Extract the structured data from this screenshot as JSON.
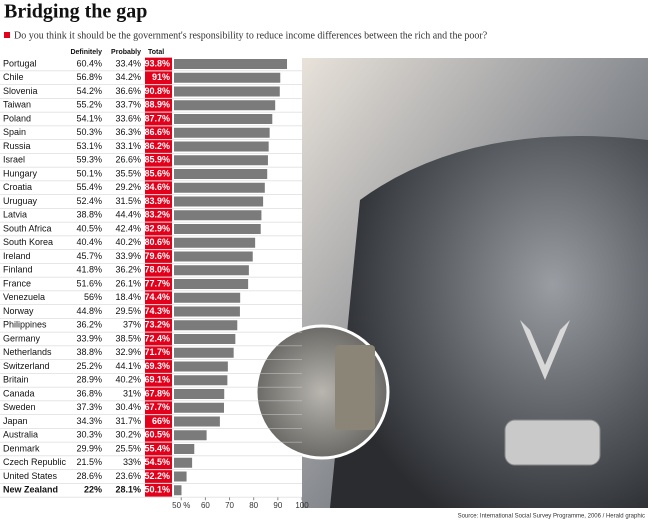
{
  "chart_data": {
    "type": "bar",
    "orientation": "horizontal",
    "title": "Bridging the gap",
    "subtitle": "Do you think it should be the government's responsibility to reduce income differences between the rich and the poor?",
    "source": "Source: International Social Survey Programme, 2006 / Herald graphic",
    "categories": [
      "Portugal",
      "Chile",
      "Slovenia",
      "Taiwan",
      "Poland",
      "Spain",
      "Russia",
      "Israel",
      "Hungary",
      "Croatia",
      "Uruguay",
      "Latvia",
      "South Africa",
      "South Korea",
      "Ireland",
      "Finland",
      "France",
      "Venezuela",
      "Norway",
      "Philippines",
      "Germany",
      "Netherlands",
      "Switzerland",
      "Britain",
      "Canada",
      "Sweden",
      "Japan",
      "Australia",
      "Denmark",
      "Czech Republic",
      "United States",
      "New Zealand"
    ],
    "highlight_index": 31,
    "series": [
      {
        "name": "Definitely",
        "values": [
          60.4,
          56.8,
          54.2,
          55.2,
          54.1,
          50.3,
          53.1,
          59.3,
          50.1,
          55.4,
          52.4,
          38.8,
          40.5,
          40.4,
          45.7,
          41.8,
          51.6,
          56,
          44.8,
          36.2,
          33.9,
          38.8,
          25.2,
          28.9,
          36.8,
          37.3,
          34.3,
          30.3,
          29.9,
          21.5,
          28.6,
          22
        ],
        "value_labels": [
          "60.4%",
          "56.8%",
          "54.2%",
          "55.2%",
          "54.1%",
          "50.3%",
          "53.1%",
          "59.3%",
          "50.1%",
          "55.4%",
          "52.4%",
          "38.8%",
          "40.5%",
          "40.4%",
          "45.7%",
          "41.8%",
          "51.6%",
          "56%",
          "44.8%",
          "36.2%",
          "33.9%",
          "38.8%",
          "25.2%",
          "28.9%",
          "36.8%",
          "37.3%",
          "34.3%",
          "30.3%",
          "29.9%",
          "21.5%",
          "28.6%",
          "22%"
        ]
      },
      {
        "name": "Probably",
        "values": [
          33.4,
          34.2,
          36.6,
          33.7,
          33.6,
          36.3,
          33.1,
          26.6,
          35.5,
          29.2,
          31.5,
          44.4,
          42.4,
          40.2,
          33.9,
          36.2,
          26.1,
          18.4,
          29.5,
          37,
          38.5,
          32.9,
          44.1,
          40.2,
          31,
          30.4,
          31.7,
          30.2,
          25.5,
          33,
          23.6,
          28.1
        ],
        "value_labels": [
          "33.4%",
          "34.2%",
          "36.6%",
          "33.7%",
          "33.6%",
          "36.3%",
          "33.1%",
          "26.6%",
          "35.5%",
          "29.2%",
          "31.5%",
          "44.4%",
          "42.4%",
          "40.2%",
          "33.9%",
          "36.2%",
          "26.1%",
          "18.4%",
          "29.5%",
          "37%",
          "38.5%",
          "32.9%",
          "44.1%",
          "40.2%",
          "31%",
          "30.4%",
          "31.7%",
          "30.2%",
          "25.5%",
          "33%",
          "23.6%",
          "28.1%"
        ]
      },
      {
        "name": "Total",
        "color": "#7b7b7b",
        "label_color": "#e3001b",
        "values": [
          93.8,
          91,
          90.8,
          88.9,
          87.7,
          86.6,
          86.2,
          85.9,
          85.6,
          84.6,
          83.9,
          83.2,
          82.9,
          80.6,
          79.6,
          78.0,
          77.7,
          74.4,
          74.3,
          73.2,
          72.4,
          71.7,
          69.3,
          69.1,
          67.8,
          67.7,
          66,
          60.5,
          55.4,
          54.5,
          52.2,
          50.1
        ],
        "value_labels": [
          "93.8%",
          "91%",
          "90.8%",
          "88.9%",
          "87.7%",
          "86.6%",
          "86.2%",
          "85.9%",
          "85.6%",
          "84.6%",
          "83.9%",
          "83.2%",
          "82.9%",
          "80.6%",
          "79.6%",
          "78.0%",
          "77.7%",
          "74.4%",
          "74.3%",
          "73.2%",
          "72.4%",
          "71.7%",
          "69.3%",
          "69.1%",
          "67.8%",
          "67.7%",
          "66%",
          "60.5%",
          "55.4%",
          "54.5%",
          "52.2%",
          "50.1%"
        ]
      }
    ],
    "xlim": [
      47,
      100
    ],
    "xticks": [
      {
        "value": 50,
        "label": "50 %"
      },
      60,
      70,
      80,
      90,
      100
    ]
  }
}
